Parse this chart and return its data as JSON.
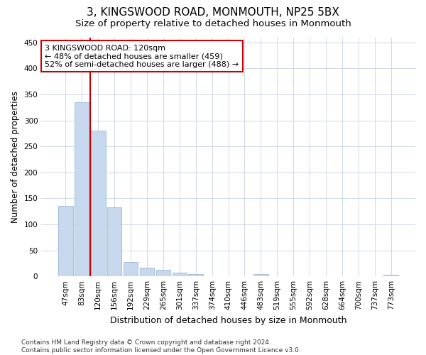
{
  "title": "3, KINGSWOOD ROAD, MONMOUTH, NP25 5BX",
  "subtitle": "Size of property relative to detached houses in Monmouth",
  "xlabel": "Distribution of detached houses by size in Monmouth",
  "ylabel": "Number of detached properties",
  "categories": [
    "47sqm",
    "83sqm",
    "120sqm",
    "156sqm",
    "192sqm",
    "229sqm",
    "265sqm",
    "301sqm",
    "337sqm",
    "374sqm",
    "410sqm",
    "446sqm",
    "483sqm",
    "519sqm",
    "555sqm",
    "592sqm",
    "628sqm",
    "664sqm",
    "700sqm",
    "737sqm",
    "773sqm"
  ],
  "values": [
    135,
    335,
    280,
    133,
    27,
    17,
    13,
    7,
    5,
    0,
    0,
    0,
    4,
    0,
    0,
    0,
    0,
    0,
    0,
    0,
    3
  ],
  "bar_color": "#c8d8ee",
  "bar_edge_color": "#9ab8d8",
  "red_line_index": 2,
  "red_line_color": "#cc0000",
  "annotation_line1": "3 KINGSWOOD ROAD: 120sqm",
  "annotation_line2": "← 48% of detached houses are smaller (459)",
  "annotation_line3": "52% of semi-detached houses are larger (488) →",
  "annotation_box_color": "white",
  "annotation_box_edge_color": "#cc0000",
  "ylim": [
    0,
    460
  ],
  "yticks": [
    0,
    50,
    100,
    150,
    200,
    250,
    300,
    350,
    400,
    450
  ],
  "footnote": "Contains HM Land Registry data © Crown copyright and database right 2024.\nContains public sector information licensed under the Open Government Licence v3.0.",
  "bg_color": "#ffffff",
  "plot_bg_color": "#ffffff",
  "grid_color": "#d0d8e8",
  "title_fontsize": 11,
  "subtitle_fontsize": 9.5,
  "ylabel_fontsize": 8.5,
  "xlabel_fontsize": 9,
  "tick_fontsize": 7.5,
  "annotation_fontsize": 8,
  "footnote_fontsize": 6.5
}
